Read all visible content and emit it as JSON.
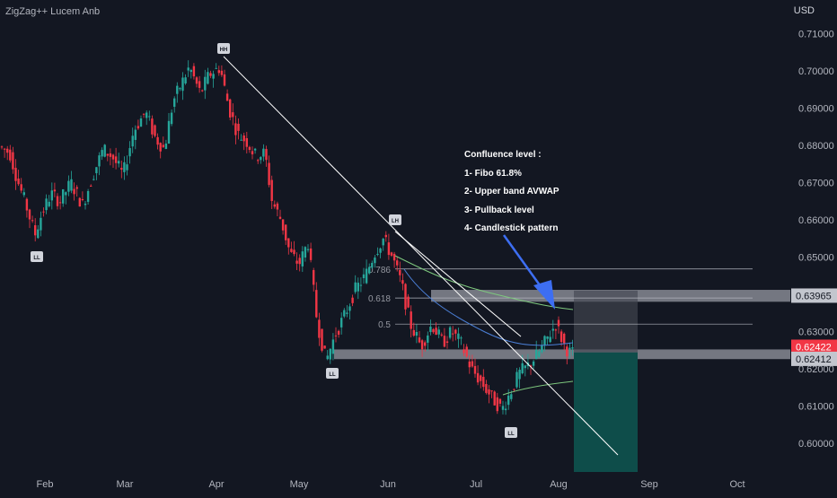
{
  "header": {
    "indicator": "ZigZag++ Lucem Anb",
    "currency": "USD"
  },
  "annotation": {
    "title": "Confluence level :",
    "items": [
      "1- Fibo 61.8%",
      "2- Upper band AVWAP",
      "3- Pullback level",
      "4- Candlestick pattern"
    ]
  },
  "chart_data": {
    "type": "candlestick",
    "title": "",
    "xlabel": "",
    "ylabel": "",
    "ylim": [
      0.5925,
      0.7125
    ],
    "y_ticks": [
      "0.71000",
      "0.70000",
      "0.69000",
      "0.68000",
      "0.67000",
      "0.66000",
      "0.65000",
      "0.64000",
      "0.63000",
      "0.62000",
      "0.61000",
      "0.60000"
    ],
    "x_ticks": [
      "Feb",
      "Mar",
      "Apr",
      "May",
      "Jun",
      "Jul",
      "Aug",
      "Sep",
      "Oct"
    ],
    "price_labels": [
      {
        "text": "0.63965",
        "value": 0.63965,
        "style": "level"
      },
      {
        "text": "0.62422",
        "value": 0.62422,
        "style": "current"
      },
      {
        "text": "0.62412",
        "value": 0.62412,
        "style": "level"
      }
    ],
    "fib_levels": [
      {
        "label": "0.786",
        "value": 0.6468
      },
      {
        "label": "0.618",
        "value": 0.639
      },
      {
        "label": "0.5",
        "value": 0.632
      }
    ],
    "zigzag_labels": [
      "LL",
      "HH",
      "LH",
      "LL",
      "LL"
    ],
    "zones": [
      {
        "name": "resistance",
        "from": 0.638,
        "to": 0.6412
      },
      {
        "name": "support",
        "from": 0.6226,
        "to": 0.6252
      }
    ],
    "colors": {
      "up": "#26a69a",
      "down": "#f23645",
      "background": "#131722",
      "zone": "#9598a1",
      "target": "#0e4d4a",
      "arrow": "#3d6ef2"
    }
  }
}
